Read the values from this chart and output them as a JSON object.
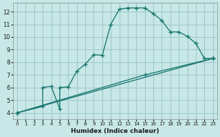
{
  "background_color": "#c8e8e8",
  "grid_color": "#a0c8c8",
  "line_color": "#1a7870",
  "marker_color": "#1a7870",
  "xlabel": "Humidex (Indice chaleur)",
  "xlim": [
    -0.5,
    23.5
  ],
  "ylim": [
    3.5,
    12.7
  ],
  "xticks": [
    0,
    1,
    2,
    3,
    4,
    5,
    6,
    7,
    8,
    9,
    10,
    11,
    12,
    13,
    14,
    15,
    16,
    17,
    18,
    19,
    20,
    21,
    22,
    23
  ],
  "yticks": [
    4,
    5,
    6,
    7,
    8,
    9,
    10,
    11,
    12
  ],
  "series1_x": [
    0,
    3,
    3,
    4,
    5,
    5,
    6,
    7,
    8,
    9,
    10,
    11,
    12,
    13,
    14,
    15,
    16,
    17,
    18,
    19,
    20,
    21,
    22,
    23
  ],
  "series1_y": [
    4,
    4.5,
    6.0,
    6.1,
    4.3,
    6.0,
    6.05,
    7.3,
    7.85,
    8.6,
    8.55,
    11.0,
    12.2,
    12.3,
    12.3,
    12.3,
    11.85,
    11.3,
    10.4,
    10.4,
    10.05,
    9.5,
    8.3,
    8.3
  ],
  "series2_x": [
    0,
    23
  ],
  "series2_y": [
    4.0,
    8.3
  ],
  "series3_x": [
    0,
    15,
    23
  ],
  "series3_y": [
    4.0,
    7.0,
    8.3
  ]
}
